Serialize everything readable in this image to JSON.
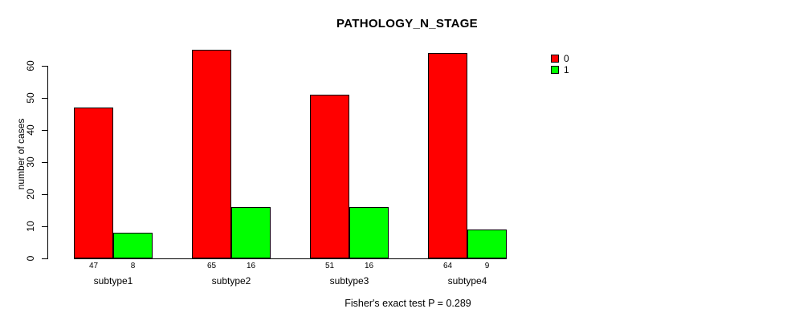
{
  "chart_data": {
    "type": "bar",
    "title": "PATHOLOGY_N_STAGE",
    "ylabel": "number of cases",
    "xlabel": "",
    "categories": [
      "subtype1",
      "subtype2",
      "subtype3",
      "subtype4"
    ],
    "series": [
      {
        "name": "0",
        "color": "#ff0000",
        "values": [
          47,
          65,
          51,
          64
        ]
      },
      {
        "name": "1",
        "color": "#00ff00",
        "values": [
          8,
          16,
          16,
          9
        ]
      }
    ],
    "yticks": [
      0,
      10,
      20,
      30,
      40,
      50,
      60
    ],
    "ylim": [
      0,
      65
    ],
    "grid": false,
    "legend_position": "right-of-plot-top",
    "bar_border_color": "#000000",
    "annotation": "Fisher's exact test P = 0.289"
  }
}
